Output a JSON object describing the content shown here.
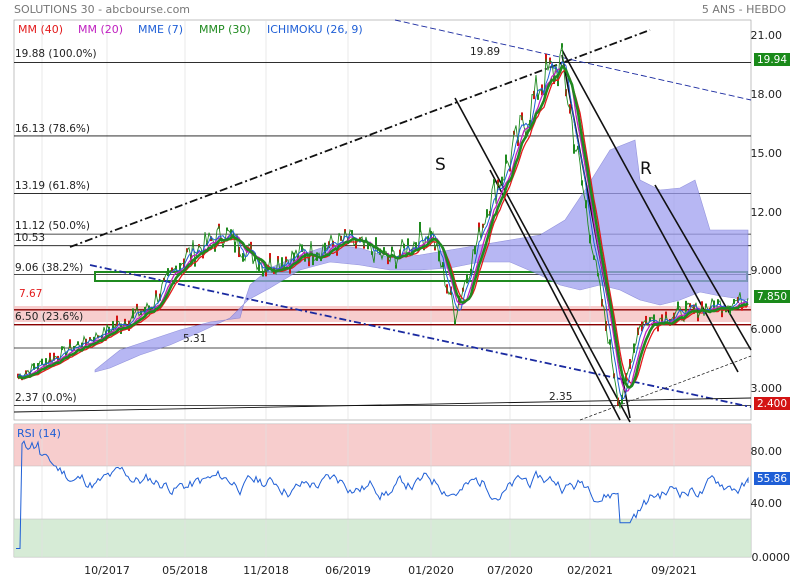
{
  "header": {
    "title": "SOLUTIONS 30 - abcbourse.com",
    "period": "5 ANS - HEBDO"
  },
  "legend": [
    {
      "label": "MM (40)",
      "color": "#e31a1c"
    },
    {
      "label": "MM (20)",
      "color": "#c020c0"
    },
    {
      "label": "MME (7)",
      "color": "#1f5fd6"
    },
    {
      "label": "MMP (30)",
      "color": "#1f8a1f"
    },
    {
      "label": "ICHIMOKU (26, 9)",
      "color": "#1f5fd6"
    }
  ],
  "price_axis": {
    "ticks": [
      "21.00",
      "18.00",
      "15.00",
      "12.00",
      "9.000",
      "6.000",
      "3.000"
    ],
    "last_price": "7.850",
    "upper_tag": "19.94",
    "lower_tag": "2.400"
  },
  "fib_levels": [
    {
      "label": "19.88  (100.0%)",
      "value": 19.88
    },
    {
      "label": "16.13  (78.6%)",
      "value": 16.13
    },
    {
      "label": "13.19  (61.8%)",
      "value": 13.19
    },
    {
      "label": "11.12  (50.0%)",
      "value": 11.12
    },
    {
      "label": "9.06  (38.2%)",
      "value": 9.06
    },
    {
      "label": "6.50  (23.6%)",
      "value": 6.5
    },
    {
      "label": "2.37  (0.0%)",
      "value": 2.37
    }
  ],
  "annotations": {
    "peak": "19.89",
    "trough": "2.35",
    "support": "5.31",
    "level_1053": "10.53",
    "level_767": "7.67",
    "pattern_s": "S",
    "pattern_r": "R"
  },
  "rsi": {
    "title": "RSI (14)",
    "ticks": [
      "80.00",
      "40.00",
      "0.0000"
    ],
    "last": "55.86"
  },
  "x_axis": [
    "10/2017",
    "05/2018",
    "11/2018",
    "06/2019",
    "01/2020",
    "07/2020",
    "02/2021",
    "09/2021"
  ],
  "colors": {
    "price": "#1f8a1f",
    "mm40": "#e31a1c",
    "mm20": "#c020c0",
    "mme7": "#1f5fd6",
    "mmp30": "#1f8a1f",
    "cloud": "#9f9ff0",
    "zone_red": "#f6c4c4",
    "zone_green": "#cfe7cf"
  },
  "chart_data": {
    "type": "line",
    "title": "SOLUTIONS 30 - abcbourse.com",
    "x": [
      "2017-07",
      "2017-10",
      "2018-01",
      "2018-05",
      "2018-08",
      "2018-11",
      "2019-02",
      "2019-06",
      "2019-09",
      "2020-01",
      "2020-03",
      "2020-05",
      "2020-07",
      "2020-10",
      "2020-12",
      "2021-02",
      "2021-04",
      "2021-06",
      "2021-09",
      "2021-12"
    ],
    "series": [
      {
        "name": "Price",
        "values": [
          3.9,
          6.2,
          7.4,
          10.0,
          11.2,
          9.5,
          10.2,
          10.8,
          9.8,
          11.3,
          7.1,
          12.8,
          15.0,
          18.8,
          19.89,
          11.2,
          2.35,
          6.6,
          7.0,
          7.85
        ]
      }
    ],
    "ylim": [
      0,
      22
    ],
    "rsi": {
      "ylim": [
        0,
        100
      ],
      "last": 55.86
    }
  }
}
